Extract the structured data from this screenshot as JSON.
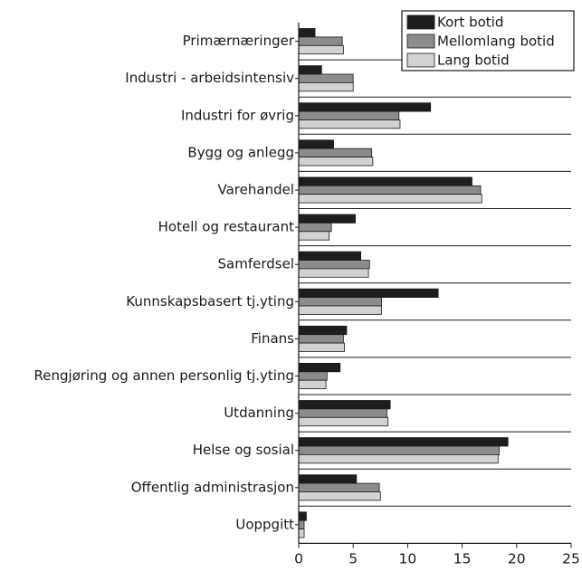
{
  "chart_data": {
    "type": "bar",
    "orientation": "horizontal",
    "title": "",
    "xlabel": "",
    "ylabel": "",
    "categories": [
      "Primærnæringer",
      "Industri - arbeidsintensiv",
      "Industri for øvrig",
      "Bygg og anlegg",
      "Varehandel",
      "Hotell og restaurant",
      "Samferdsel",
      "Kunnskapsbasert tj.yting",
      "Finans",
      "Rengjøring og annen personlig tj.yting",
      "Utdanning",
      "Helse og sosial",
      "Offentlig administrasjon",
      "Uoppgitt"
    ],
    "series": [
      {
        "name": "Kort botid",
        "color": "#1e1e1e",
        "values": [
          1.5,
          2.1,
          12.1,
          3.2,
          15.9,
          5.2,
          5.7,
          12.8,
          4.4,
          3.8,
          8.4,
          19.2,
          5.3,
          0.7
        ]
      },
      {
        "name": "Mellomlang botid",
        "color": "#8c8c8c",
        "values": [
          4.0,
          5.0,
          9.2,
          6.7,
          16.7,
          3.0,
          6.5,
          7.6,
          4.1,
          2.6,
          8.1,
          18.4,
          7.4,
          0.5
        ]
      },
      {
        "name": "Lang botid",
        "color": "#d2d2d2",
        "values": [
          4.1,
          5.0,
          9.3,
          6.8,
          16.8,
          2.8,
          6.4,
          7.6,
          4.2,
          2.5,
          8.2,
          18.3,
          7.5,
          0.5
        ]
      }
    ],
    "xlim": [
      0,
      25
    ],
    "xticks": [
      "0",
      "5",
      "10",
      "15",
      "20",
      "25"
    ],
    "grid": "horizontal separators between categories",
    "legend": "top-right"
  }
}
